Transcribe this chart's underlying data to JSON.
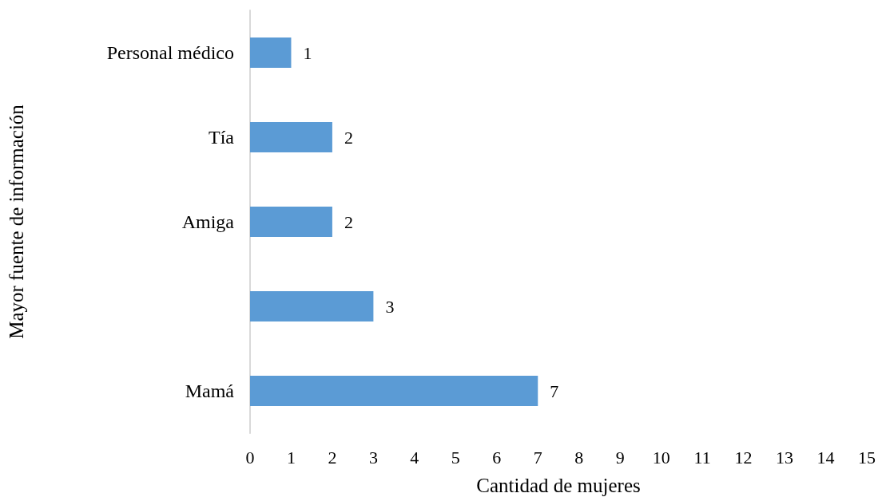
{
  "chart_data": {
    "type": "bar",
    "orientation": "horizontal",
    "categories": [
      "Personal médico",
      "Tía",
      "Amiga",
      null,
      "Mamá"
    ],
    "values": [
      1,
      2,
      2,
      3,
      7
    ],
    "color": "#5b9bd5",
    "xlabel": "Cantidad de mujeres",
    "ylabel": "Mayor fuente de información",
    "xlim": [
      0,
      15
    ],
    "xticks": [
      0,
      1,
      2,
      3,
      4,
      5,
      6,
      7,
      8,
      9,
      10,
      11,
      12,
      13,
      14,
      15
    ],
    "data_labels": true,
    "grid": false
  }
}
